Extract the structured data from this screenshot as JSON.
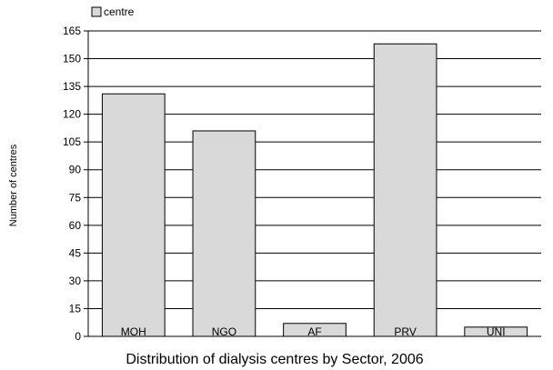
{
  "chart_data": {
    "type": "bar",
    "title": "Distribution of dialysis centres by Sector, 2006",
    "xlabel": "",
    "ylabel": "Number of centres",
    "categories": [
      "MOH",
      "NGO",
      "AF",
      "PRV",
      "UNI"
    ],
    "series": [
      {
        "name": "centre",
        "values": [
          131,
          111,
          7,
          158,
          5
        ]
      }
    ],
    "ylim": [
      0,
      165
    ],
    "yticks": [
      0,
      15,
      30,
      45,
      60,
      75,
      90,
      105,
      120,
      135,
      150,
      165
    ],
    "grid": true,
    "legend": "top-left",
    "bar_fill": "#d9d9d9",
    "bar_stroke": "#000000"
  }
}
